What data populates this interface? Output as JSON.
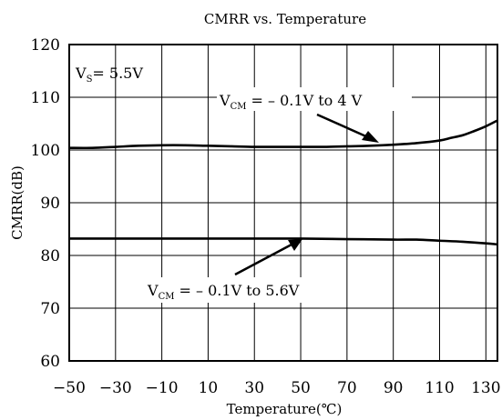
{
  "chart_data": {
    "type": "line",
    "title": "CMRR vs. Temperature",
    "xlabel": "Temperature(℃)",
    "ylabel": "CMRR(dB)",
    "xlim": [
      -50,
      135
    ],
    "ylim": [
      60,
      120
    ],
    "x_ticks": [
      -50,
      -30,
      -10,
      10,
      30,
      50,
      70,
      90,
      110,
      130
    ],
    "y_ticks": [
      60,
      70,
      80,
      90,
      100,
      110,
      120
    ],
    "grid": true,
    "series": [
      {
        "label": {
          "main": "V",
          "sub": "CM",
          "rest": " = – 0.1V to 4 V"
        },
        "x": [
          -50,
          -40,
          -30,
          -20,
          -10,
          0,
          10,
          20,
          30,
          40,
          50,
          60,
          70,
          80,
          90,
          100,
          110,
          115,
          120,
          125,
          130,
          135
        ],
        "y": [
          100.4,
          100.4,
          100.6,
          100.8,
          100.9,
          100.9,
          100.8,
          100.7,
          100.6,
          100.6,
          100.6,
          100.6,
          100.7,
          100.8,
          101.0,
          101.3,
          101.8,
          102.3,
          102.8,
          103.6,
          104.5,
          105.6
        ]
      },
      {
        "label": {
          "main": "V",
          "sub": "CM",
          "rest": " = – 0.1V to 5.6V"
        },
        "x": [
          -50,
          -30,
          -10,
          10,
          30,
          50,
          70,
          90,
          100,
          110,
          120,
          130,
          135
        ],
        "y": [
          83.2,
          83.2,
          83.2,
          83.2,
          83.2,
          83.2,
          83.1,
          83.0,
          83.0,
          82.8,
          82.6,
          82.3,
          82.1
        ]
      }
    ],
    "annotations": [
      {
        "main": "V",
        "sub": "S",
        "rest": "= 5.5V"
      }
    ]
  }
}
